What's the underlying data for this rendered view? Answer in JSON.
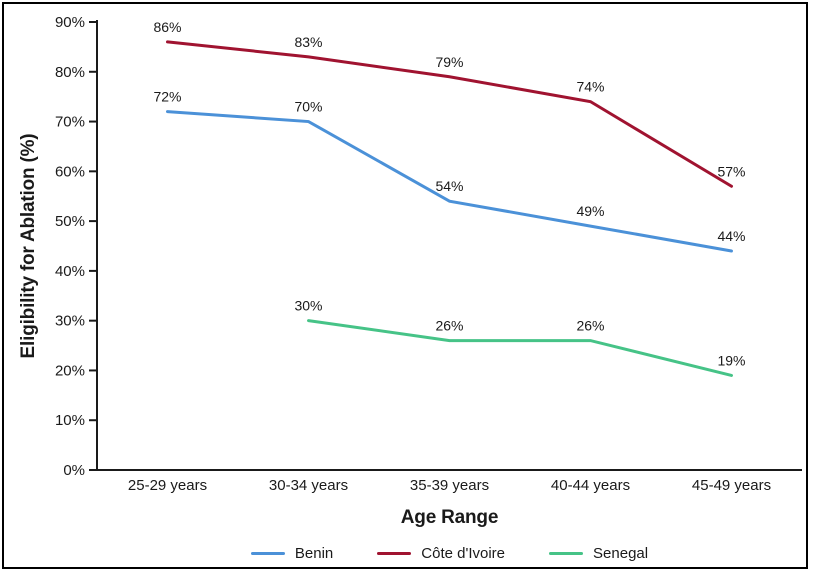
{
  "figure": {
    "background": "#ffffff",
    "border_color": "#000000",
    "axis_color": "#1a1a1a",
    "text_color": "#1a1a1a"
  },
  "chart_data": {
    "type": "line",
    "title": "",
    "xlabel": "Age Range",
    "ylabel": "Eligibility for Ablation (%)",
    "categories": [
      "25-29 years",
      "30-34 years",
      "35-39 years",
      "40-44 years",
      "45-49 years"
    ],
    "ylim": [
      0,
      90
    ],
    "ytick_step": 10,
    "ytick_labels": [
      "0%",
      "10%",
      "20%",
      "30%",
      "40%",
      "50%",
      "60%",
      "70%",
      "80%",
      "90%"
    ],
    "grid": false,
    "legend_position": "bottom",
    "series": [
      {
        "name": "Benin",
        "color": "#4B91D8",
        "values": [
          72,
          70,
          54,
          49,
          44
        ],
        "point_labels": [
          "72%",
          "70%",
          "54%",
          "49%",
          "44%"
        ]
      },
      {
        "name": "Côte d'Ivoire",
        "color": "#A01330",
        "values": [
          86,
          83,
          79,
          74,
          57
        ],
        "point_labels": [
          "86%",
          "83%",
          "79%",
          "74%",
          "57%"
        ]
      },
      {
        "name": "Senegal",
        "color": "#46C387",
        "values": [
          null,
          30,
          26,
          26,
          19
        ],
        "point_labels": [
          null,
          "30%",
          "26%",
          "26%",
          "19%"
        ]
      }
    ]
  }
}
